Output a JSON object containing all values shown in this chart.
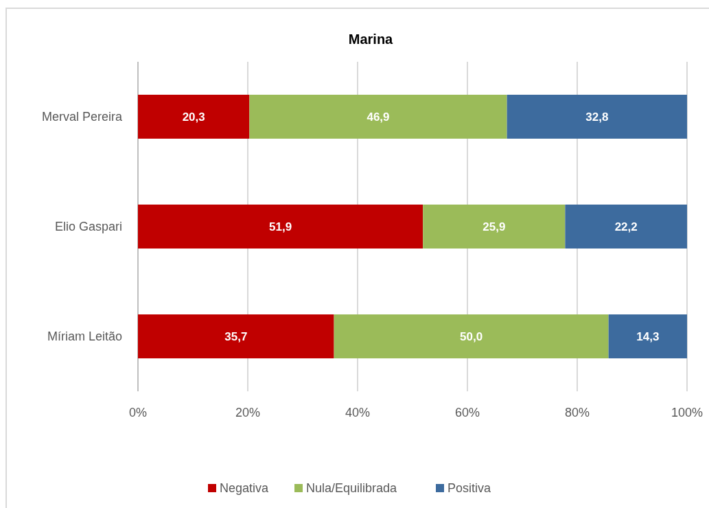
{
  "chart_data": {
    "type": "bar",
    "orientation": "horizontal",
    "stacked": true,
    "title": "Marina",
    "categories": [
      "Merval Pereira",
      "Elio Gaspari",
      "Míriam Leitão"
    ],
    "series": [
      {
        "name": "Negativa",
        "color": "#c00000",
        "values": [
          20.3,
          51.9,
          35.7
        ],
        "value_labels": [
          "20,3",
          "51,9",
          "35,7"
        ]
      },
      {
        "name": "Nula/Equilibrada",
        "color": "#9bbb59",
        "values": [
          46.9,
          25.9,
          50.0
        ],
        "value_labels": [
          "46,9",
          "25,9",
          "50,0"
        ]
      },
      {
        "name": "Positiva",
        "color": "#3d6b9e",
        "values": [
          32.8,
          22.2,
          14.3
        ],
        "value_labels": [
          "32,8",
          "22,2",
          "14,3"
        ]
      }
    ],
    "xlim": [
      0,
      100
    ],
    "xticks": [
      {
        "value": 0,
        "label": "0%"
      },
      {
        "value": 20,
        "label": "20%"
      },
      {
        "value": 40,
        "label": "40%"
      },
      {
        "value": 60,
        "label": "60%"
      },
      {
        "value": 80,
        "label": "80%"
      },
      {
        "value": 100,
        "label": "100%"
      }
    ],
    "grid": "x",
    "legend": "bottom"
  }
}
